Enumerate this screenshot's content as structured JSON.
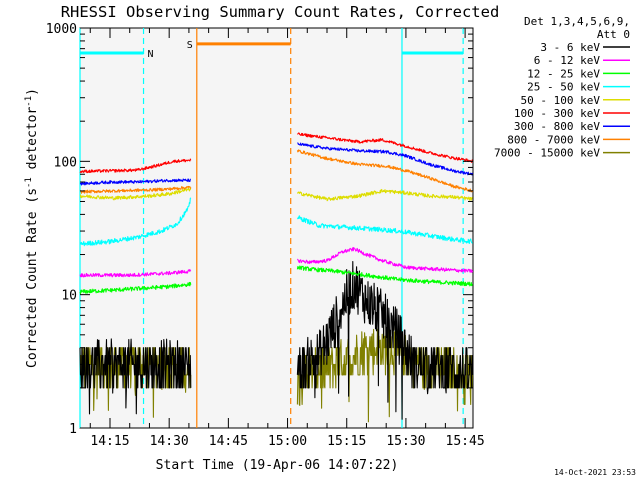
{
  "chart_data": {
    "type": "line",
    "title": "RHESSI Observing Summary Count Rates, Corrected",
    "xlabel": "Start Time (19-Apr-06 14:07:22)",
    "ylabel": "Corrected Count Rate (s",
    "ylabel_sup1": "-1",
    "ylabel_mid": " detector",
    "ylabel_sup2": "-1",
    "ylabel_end": ")",
    "yscale": "log",
    "ylim": [
      1,
      1000
    ],
    "xlim_minutes": [
      7.4,
      107
    ],
    "x_unit": "minutes after 14:00",
    "y_ticks": [
      {
        "value": 1,
        "label": "1"
      },
      {
        "value": 10,
        "label": "10"
      },
      {
        "value": 100,
        "label": "100"
      },
      {
        "value": 1000,
        "label": "1000"
      }
    ],
    "x_ticks": [
      {
        "value": 15,
        "label": "14:15"
      },
      {
        "value": 30,
        "label": "14:30"
      },
      {
        "value": 45,
        "label": "14:45"
      },
      {
        "value": 60,
        "label": "15:00"
      },
      {
        "value": 75,
        "label": "15:15"
      },
      {
        "value": 90,
        "label": "15:30"
      },
      {
        "value": 105,
        "label": "15:45"
      }
    ],
    "legend": {
      "placement": "top-right, outside plot",
      "header": [
        "Det 1,3,4,5,6,9,",
        "Att 0"
      ],
      "entries": [
        {
          "name": "3 - 6 keV",
          "color": "#000000"
        },
        {
          "name": "6 - 12 keV",
          "color": "#ff00ff"
        },
        {
          "name": "12 - 25 keV",
          "color": "#00ff00"
        },
        {
          "name": "25 - 50 keV",
          "color": "#00ffff"
        },
        {
          "name": "50 - 100 keV",
          "color": "#dddd00"
        },
        {
          "name": "100 - 300 keV",
          "color": "#ff0000"
        },
        {
          "name": "300 - 800 keV",
          "color": "#0000ff"
        },
        {
          "name": "800 - 7000 keV",
          "color": "#ff8000"
        },
        {
          "name": "7000 - 15000 keV",
          "color": "#808000"
        }
      ]
    },
    "segments": [
      [
        7.4,
        35.5
      ],
      [
        62.5,
        107
      ]
    ],
    "series": [
      {
        "name": "100 - 300 keV",
        "color": "#ff0000",
        "noise": 0.025,
        "points": [
          [
            7.4,
            84
          ],
          [
            16,
            85
          ],
          [
            22,
            86
          ],
          [
            27,
            93
          ],
          [
            31,
            100
          ],
          [
            35.5,
            102
          ],
          [
            62.5,
            160
          ],
          [
            70,
            150
          ],
          [
            78,
            140
          ],
          [
            84,
            145
          ],
          [
            90,
            130
          ],
          [
            96,
            116
          ],
          [
            102,
            106
          ],
          [
            107,
            100
          ]
        ]
      },
      {
        "name": "300 - 800 keV",
        "color": "#0000ff",
        "noise": 0.025,
        "points": [
          [
            7.4,
            68
          ],
          [
            16,
            70
          ],
          [
            22,
            70
          ],
          [
            30,
            72
          ],
          [
            35.5,
            72
          ],
          [
            62.5,
            135
          ],
          [
            70,
            125
          ],
          [
            78,
            120
          ],
          [
            85,
            118
          ],
          [
            90,
            110
          ],
          [
            96,
            95
          ],
          [
            102,
            85
          ],
          [
            107,
            80
          ]
        ]
      },
      {
        "name": "800 - 7000 keV",
        "color": "#ff8000",
        "noise": 0.025,
        "points": [
          [
            7.4,
            59
          ],
          [
            16,
            60
          ],
          [
            25,
            61
          ],
          [
            30,
            62
          ],
          [
            35.5,
            64
          ],
          [
            62.5,
            120
          ],
          [
            70,
            105
          ],
          [
            78,
            95
          ],
          [
            85,
            92
          ],
          [
            90,
            85
          ],
          [
            96,
            75
          ],
          [
            102,
            65
          ],
          [
            107,
            60
          ]
        ]
      },
      {
        "name": "50 - 100 keV",
        "color": "#dddd00",
        "noise": 0.03,
        "points": [
          [
            7.4,
            55
          ],
          [
            16,
            53
          ],
          [
            25,
            55
          ],
          [
            30,
            57
          ],
          [
            35.5,
            62
          ],
          [
            62.5,
            58
          ],
          [
            70,
            52
          ],
          [
            78,
            55
          ],
          [
            84,
            60
          ],
          [
            90,
            58
          ],
          [
            96,
            55
          ],
          [
            102,
            54
          ],
          [
            107,
            52
          ]
        ]
      },
      {
        "name": "25 - 50 keV",
        "color": "#00ffff",
        "noise": 0.04,
        "points": [
          [
            7.4,
            24
          ],
          [
            15,
            25
          ],
          [
            22,
            27
          ],
          [
            28,
            30
          ],
          [
            32,
            34
          ],
          [
            35,
            45
          ],
          [
            35.5,
            55
          ],
          [
            62.5,
            38
          ],
          [
            68,
            33
          ],
          [
            75,
            32
          ],
          [
            82,
            31
          ],
          [
            88,
            30
          ],
          [
            95,
            28
          ],
          [
            102,
            26
          ],
          [
            107,
            25
          ]
        ]
      },
      {
        "name": "6 - 12 keV",
        "color": "#ff00ff",
        "noise": 0.03,
        "points": [
          [
            7.4,
            14
          ],
          [
            20,
            14
          ],
          [
            30,
            14.5
          ],
          [
            35.5,
            15
          ],
          [
            62.5,
            18
          ],
          [
            66,
            17.5
          ],
          [
            70,
            18
          ],
          [
            74,
            21
          ],
          [
            77,
            22
          ],
          [
            80,
            20
          ],
          [
            84,
            18
          ],
          [
            90,
            16
          ],
          [
            98,
            15.5
          ],
          [
            107,
            15
          ]
        ]
      },
      {
        "name": "12 - 25 keV",
        "color": "#00ff00",
        "noise": 0.035,
        "points": [
          [
            7.4,
            10.5
          ],
          [
            20,
            11
          ],
          [
            30,
            11.5
          ],
          [
            35.5,
            12
          ],
          [
            62.5,
            16
          ],
          [
            66,
            15.5
          ],
          [
            72,
            15
          ],
          [
            80,
            14
          ],
          [
            88,
            13
          ],
          [
            96,
            12.5
          ],
          [
            107,
            12
          ]
        ]
      },
      {
        "name": "3 - 6 keV",
        "color": "#000000",
        "noise": 0.22,
        "points": [
          [
            7.4,
            3
          ],
          [
            20,
            3
          ],
          [
            35.5,
            3
          ],
          [
            62.5,
            2.8
          ],
          [
            68,
            3.5
          ],
          [
            72,
            6
          ],
          [
            75,
            10
          ],
          [
            77,
            12
          ],
          [
            80,
            9
          ],
          [
            84,
            7
          ],
          [
            88,
            5
          ],
          [
            92,
            3
          ],
          [
            100,
            2.8
          ],
          [
            107,
            2.6
          ]
        ]
      },
      {
        "name": "7000 - 15000 keV",
        "color": "#808000",
        "noise": 0.2,
        "points": [
          [
            7.4,
            3
          ],
          [
            20,
            3
          ],
          [
            35.5,
            3
          ],
          [
            62.5,
            2.5
          ],
          [
            72,
            3
          ],
          [
            80,
            4
          ],
          [
            86,
            4
          ],
          [
            94,
            3
          ],
          [
            107,
            2.5
          ]
        ]
      }
    ],
    "annotations": {
      "saa_bar": {
        "label": "S",
        "color": "#ff8000",
        "x_start": 37,
        "x_end": 60.8,
        "y": 760
      },
      "night_bars": [
        {
          "label": "N",
          "color": "#00ffff",
          "x_start": 7.4,
          "x_end": 23.5,
          "y": 650
        },
        {
          "label": "",
          "color": "#00ffff",
          "x_start": 89,
          "x_end": 104.5,
          "y": 650
        }
      ],
      "vlines_solid": [
        {
          "x": 7.4,
          "color": "#00ffff"
        },
        {
          "x": 37,
          "color": "#ff8000"
        },
        {
          "x": 89,
          "color": "#00ffff"
        }
      ],
      "vlines_dashed": [
        {
          "x": 23.5,
          "color": "#00ffff"
        },
        {
          "x": 60.8,
          "color": "#ff8000"
        },
        {
          "x": 104.5,
          "color": "#00ffff"
        }
      ]
    }
  },
  "footer": {
    "timestamp": "14-Oct-2021 23:53"
  }
}
